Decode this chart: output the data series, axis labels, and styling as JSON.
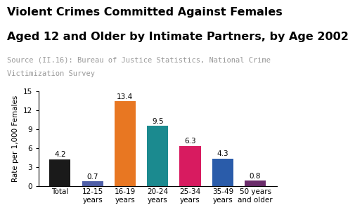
{
  "categories": [
    "Total",
    "12-15\nyears",
    "16-19\nyears",
    "20-24\nyears",
    "25-34\nyears",
    "35-49\nyears",
    "50 years\nand older"
  ],
  "values": [
    4.2,
    0.7,
    13.4,
    9.5,
    6.3,
    4.3,
    0.8
  ],
  "bar_colors": [
    "#1a1a1a",
    "#4f5fa8",
    "#e87722",
    "#1b8a8f",
    "#d81b60",
    "#2a5caa",
    "#6b2d6b"
  ],
  "title_line1": "Violent Crimes Committed Against Females",
  "title_line2": "Aged 12 and Older by Intimate Partners, by Age 2002",
  "source_line1": "Source (II.16): Bureau of Justice Statistics, National Crime",
  "source_line2": "Victimization Survey",
  "ylabel": "Rate per 1,000 Females",
  "ylim": [
    0,
    15
  ],
  "yticks": [
    0,
    3,
    6,
    9,
    12,
    15
  ],
  "bar_labels": [
    "4.2",
    "0.7",
    "13.4",
    "9.5",
    "6.3",
    "4.3",
    "0.8"
  ],
  "title_fontsize": 11.5,
  "source_fontsize": 7.5,
  "label_fontsize": 7.5,
  "tick_fontsize": 7.5,
  "ylabel_fontsize": 7.5
}
